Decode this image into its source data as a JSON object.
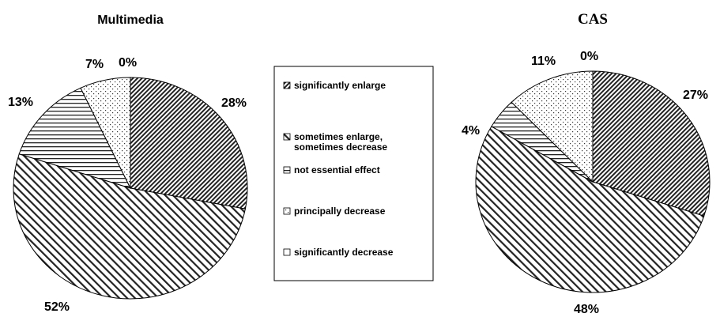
{
  "chart_data": [
    {
      "type": "pie",
      "title": "Multimedia",
      "categories": [
        "significantly enlarge",
        "sometimes enlarge, sometimes decrease",
        "not essential effect",
        "principally decrease",
        "significantly decrease"
      ],
      "values": [
        28,
        52,
        13,
        7,
        0
      ],
      "data_labels": [
        "28%",
        "52%",
        "13%",
        "7%",
        "0%"
      ]
    },
    {
      "type": "pie",
      "title": "CAS",
      "categories": [
        "significantly enlarge",
        "sometimes enlarge, sometimes decrease",
        "not essential effect",
        "principally decrease",
        "significantly decrease"
      ],
      "values": [
        27,
        48,
        4,
        11,
        0
      ],
      "data_labels": [
        "27%",
        "48%",
        "4%",
        "11%",
        "0%"
      ]
    }
  ],
  "legend": {
    "placement": "center",
    "items": [
      {
        "label_lines": [
          "significantly enlarge"
        ],
        "pattern": "dense-diagonal-forward"
      },
      {
        "label_lines": [
          "sometimes enlarge,",
          "sometimes decrease"
        ],
        "pattern": "diagonal-backward"
      },
      {
        "label_lines": [
          "not essential effect"
        ],
        "pattern": "horizontal-lines"
      },
      {
        "label_lines": [
          "principally decrease"
        ],
        "pattern": "dots"
      },
      {
        "label_lines": [
          "significantly decrease"
        ],
        "pattern": "blank"
      }
    ]
  }
}
